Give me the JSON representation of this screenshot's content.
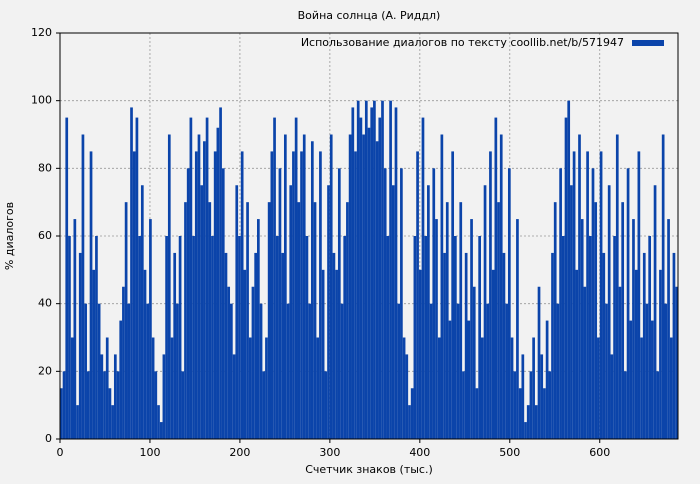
{
  "chart_data": {
    "type": "bar",
    "title": "Война солнца (А. Риддл)",
    "xlabel": "Счетчик знаков (тыс.)",
    "ylabel": "% диалогов",
    "xlim": [
      0,
      687
    ],
    "ylim": [
      0,
      120
    ],
    "xticks": [
      0,
      100,
      200,
      300,
      400,
      500,
      600
    ],
    "yticks": [
      0,
      20,
      40,
      60,
      80,
      100,
      120
    ],
    "grid": true,
    "legend": "upper right",
    "x": [
      0,
      3,
      6,
      9,
      12,
      15,
      18,
      21,
      24,
      27,
      30,
      33,
      36,
      39,
      42,
      45,
      48,
      51,
      54,
      57,
      60,
      63,
      66,
      69,
      72,
      75,
      78,
      81,
      84,
      87,
      90,
      93,
      96,
      99,
      102,
      105,
      108,
      111,
      114,
      117,
      120,
      123,
      126,
      129,
      132,
      135,
      138,
      141,
      144,
      147,
      150,
      153,
      156,
      159,
      162,
      165,
      168,
      171,
      174,
      177,
      180,
      183,
      186,
      189,
      192,
      195,
      198,
      201,
      204,
      207,
      210,
      213,
      216,
      219,
      222,
      225,
      228,
      231,
      234,
      237,
      240,
      243,
      246,
      249,
      252,
      255,
      258,
      261,
      264,
      267,
      270,
      273,
      276,
      279,
      282,
      285,
      288,
      291,
      294,
      297,
      300,
      303,
      306,
      309,
      312,
      315,
      318,
      321,
      324,
      327,
      330,
      333,
      336,
      339,
      342,
      345,
      348,
      351,
      354,
      357,
      360,
      363,
      366,
      369,
      372,
      375,
      378,
      381,
      384,
      387,
      390,
      393,
      396,
      399,
      402,
      405,
      408,
      411,
      414,
      417,
      420,
      423,
      426,
      429,
      432,
      435,
      438,
      441,
      444,
      447,
      450,
      453,
      456,
      459,
      462,
      465,
      468,
      471,
      474,
      477,
      480,
      483,
      486,
      489,
      492,
      495,
      498,
      501,
      504,
      507,
      510,
      513,
      516,
      519,
      522,
      525,
      528,
      531,
      534,
      537,
      540,
      543,
      546,
      549,
      552,
      555,
      558,
      561,
      564,
      567,
      570,
      573,
      576,
      579,
      582,
      585,
      588,
      591,
      594,
      597,
      600,
      603,
      606,
      609,
      612,
      615,
      618,
      621,
      624,
      627,
      630,
      633,
      636,
      639,
      642,
      645,
      648,
      651,
      654,
      657,
      660,
      663,
      666,
      669,
      672,
      675,
      678,
      681,
      684
    ],
    "series": [
      {
        "name": "Использование диалогов по тексту coollib.net/b/571947",
        "color": "#0b44aa",
        "values": [
          15,
          20,
          95,
          60,
          30,
          65,
          10,
          55,
          90,
          40,
          20,
          85,
          50,
          60,
          40,
          25,
          20,
          30,
          15,
          10,
          25,
          20,
          35,
          45,
          70,
          40,
          98,
          85,
          95,
          60,
          75,
          50,
          40,
          65,
          30,
          20,
          10,
          5,
          25,
          60,
          90,
          30,
          55,
          40,
          60,
          20,
          70,
          80,
          95,
          60,
          85,
          90,
          75,
          88,
          95,
          70,
          60,
          85,
          92,
          98,
          80,
          55,
          45,
          40,
          25,
          75,
          60,
          85,
          50,
          70,
          30,
          45,
          55,
          65,
          40,
          20,
          30,
          70,
          85,
          95,
          60,
          80,
          55,
          90,
          40,
          75,
          85,
          95,
          70,
          85,
          90,
          60,
          40,
          88,
          70,
          30,
          85,
          50,
          20,
          75,
          90,
          55,
          50,
          80,
          40,
          60,
          70,
          90,
          98,
          85,
          100,
          95,
          90,
          100,
          92,
          98,
          100,
          88,
          95,
          100,
          80,
          60,
          100,
          75,
          98,
          40,
          80,
          30,
          25,
          10,
          15,
          60,
          85,
          50,
          95,
          60,
          75,
          40,
          80,
          65,
          30,
          90,
          55,
          70,
          35,
          85,
          60,
          40,
          70,
          20,
          55,
          35,
          65,
          45,
          15,
          60,
          30,
          75,
          40,
          85,
          50,
          95,
          70,
          90,
          55,
          40,
          80,
          30,
          20,
          65,
          15,
          25,
          5,
          10,
          20,
          30,
          10,
          45,
          25,
          15,
          35,
          20,
          55,
          70,
          40,
          80,
          60,
          95,
          100,
          75,
          85,
          50,
          90,
          65,
          45,
          85,
          60,
          80,
          70,
          30,
          85,
          55,
          40,
          75,
          25,
          60,
          90,
          45,
          70,
          20,
          80,
          35,
          65,
          50,
          85,
          30,
          55,
          40,
          60,
          35,
          75,
          20,
          50,
          90,
          40,
          65,
          30,
          55,
          45
        ]
      }
    ]
  }
}
